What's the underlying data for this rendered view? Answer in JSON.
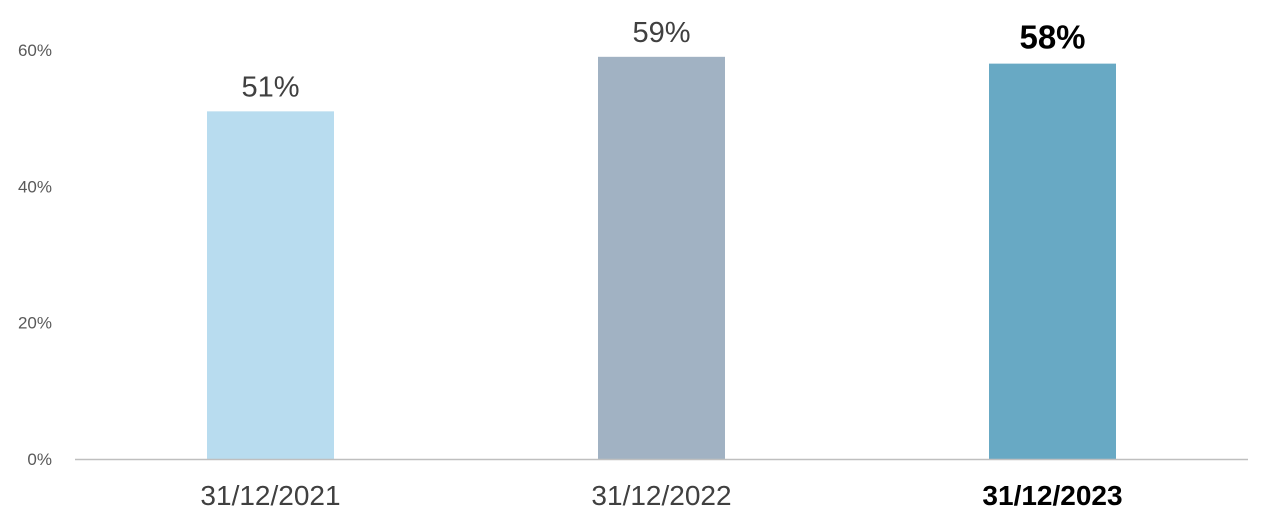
{
  "chart_data": {
    "type": "bar",
    "categories": [
      "31/12/2021",
      "31/12/2022",
      "31/12/2023"
    ],
    "values": [
      51,
      59,
      58
    ],
    "data_labels": [
      "51%",
      "59%",
      "58%"
    ],
    "bar_colors": [
      "#b8dcef",
      "#a1b2c3",
      "#68a9c4"
    ],
    "highlight_index": 2,
    "yticks": [
      {
        "value": 0,
        "label": "0%"
      },
      {
        "value": 20,
        "label": "20%"
      },
      {
        "value": 40,
        "label": "40%"
      },
      {
        "value": 60,
        "label": "60%"
      }
    ],
    "ylim": [
      0,
      60
    ],
    "grid": false,
    "axis_color": "#bfbfbf",
    "title": "",
    "xlabel": "",
    "ylabel": ""
  }
}
